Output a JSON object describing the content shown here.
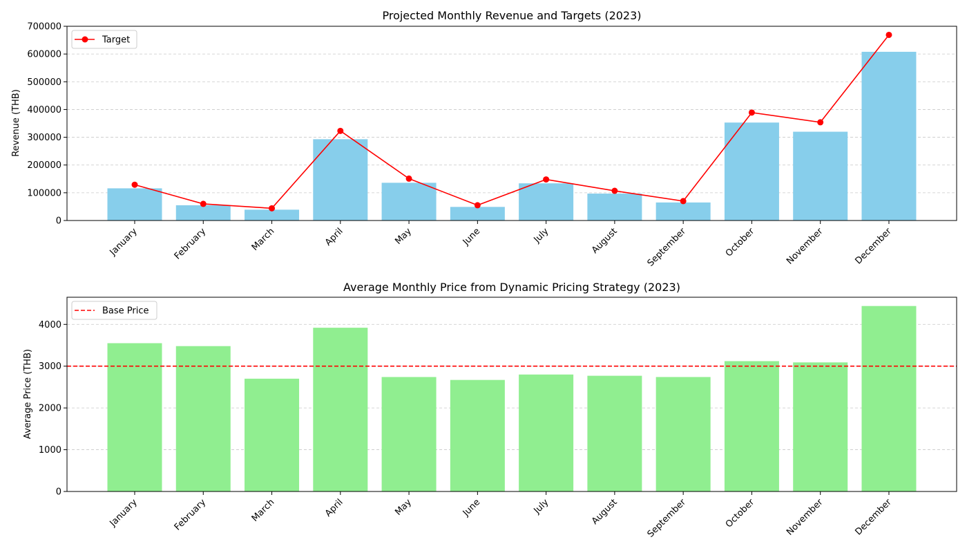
{
  "chart_data": [
    {
      "type": "bar",
      "title": "Projected Monthly Revenue and Targets (2023)",
      "xlabel": "",
      "ylabel": "Revenue (THB)",
      "categories": [
        "January",
        "February",
        "March",
        "April",
        "May",
        "June",
        "July",
        "August",
        "September",
        "October",
        "November",
        "December"
      ],
      "ylim": [
        0,
        700000
      ],
      "yticks": [
        0,
        100000,
        200000,
        300000,
        400000,
        500000,
        600000,
        700000
      ],
      "grid": "y-dashed",
      "legend_position": "top-left",
      "series": [
        {
          "kind": "bar",
          "color": "#87ceeb",
          "values": [
            116000,
            55000,
            39000,
            293000,
            136000,
            49000,
            134000,
            97000,
            65000,
            353000,
            320000,
            608000
          ]
        },
        {
          "kind": "line",
          "name": "Target",
          "color": "#ff0000",
          "marker": "circle",
          "values": [
            129000,
            60000,
            44000,
            323000,
            151000,
            55000,
            148000,
            107000,
            70000,
            389000,
            354000,
            669000
          ]
        }
      ]
    },
    {
      "type": "bar",
      "title": "Average Monthly Price from Dynamic Pricing Strategy (2023)",
      "xlabel": "",
      "ylabel": "Average Price (THB)",
      "categories": [
        "January",
        "February",
        "March",
        "April",
        "May",
        "June",
        "July",
        "August",
        "September",
        "October",
        "November",
        "December"
      ],
      "ylim": [
        0,
        4650
      ],
      "yticks": [
        0,
        1000,
        2000,
        3000,
        4000
      ],
      "grid": "y-dashed",
      "legend_position": "top-left",
      "series": [
        {
          "kind": "bar",
          "color": "#90ee90",
          "values": [
            3550,
            3480,
            2700,
            3920,
            2740,
            2670,
            2800,
            2770,
            2740,
            3120,
            3090,
            4440
          ]
        },
        {
          "kind": "hline",
          "name": "Base Price",
          "color": "#ff0000",
          "linestyle": "dashed",
          "value": 3000
        }
      ]
    }
  ]
}
